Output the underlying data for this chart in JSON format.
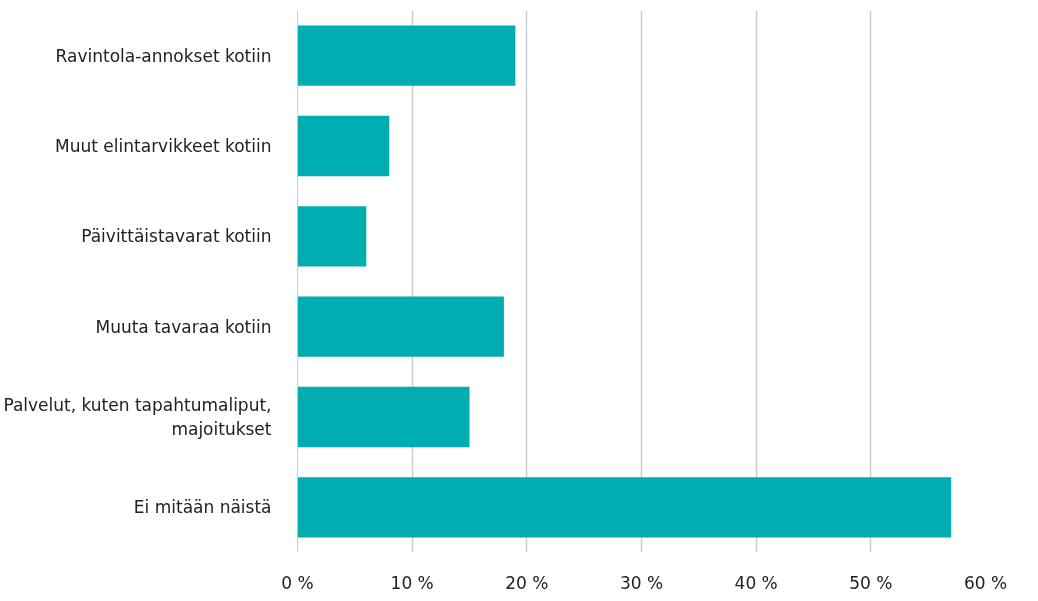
{
  "chart_data": {
    "type": "bar",
    "orientation": "horizontal",
    "categories": [
      "Ravintola-annokset kotiin",
      "Muut elintarvikkeet kotiin",
      "Päivittäistavarat kotiin",
      "Muuta tavaraa kotiin",
      "Palvelut, kuten tapahtumaliput, majoitukset",
      "Ei mitään näistä"
    ],
    "values": [
      19,
      8,
      6,
      18,
      15,
      57
    ],
    "color": "#00adb0",
    "xlim": [
      0,
      60
    ],
    "xticks": [
      {
        "value": 0,
        "label": "0 %"
      },
      {
        "value": 10,
        "label": "10 %"
      },
      {
        "value": 20,
        "label": "20 %"
      },
      {
        "value": 30,
        "label": "30 %"
      },
      {
        "value": 40,
        "label": "40 %"
      },
      {
        "value": 50,
        "label": "50 %"
      },
      {
        "value": 60,
        "label": "60 %"
      }
    ],
    "grid": "x"
  }
}
